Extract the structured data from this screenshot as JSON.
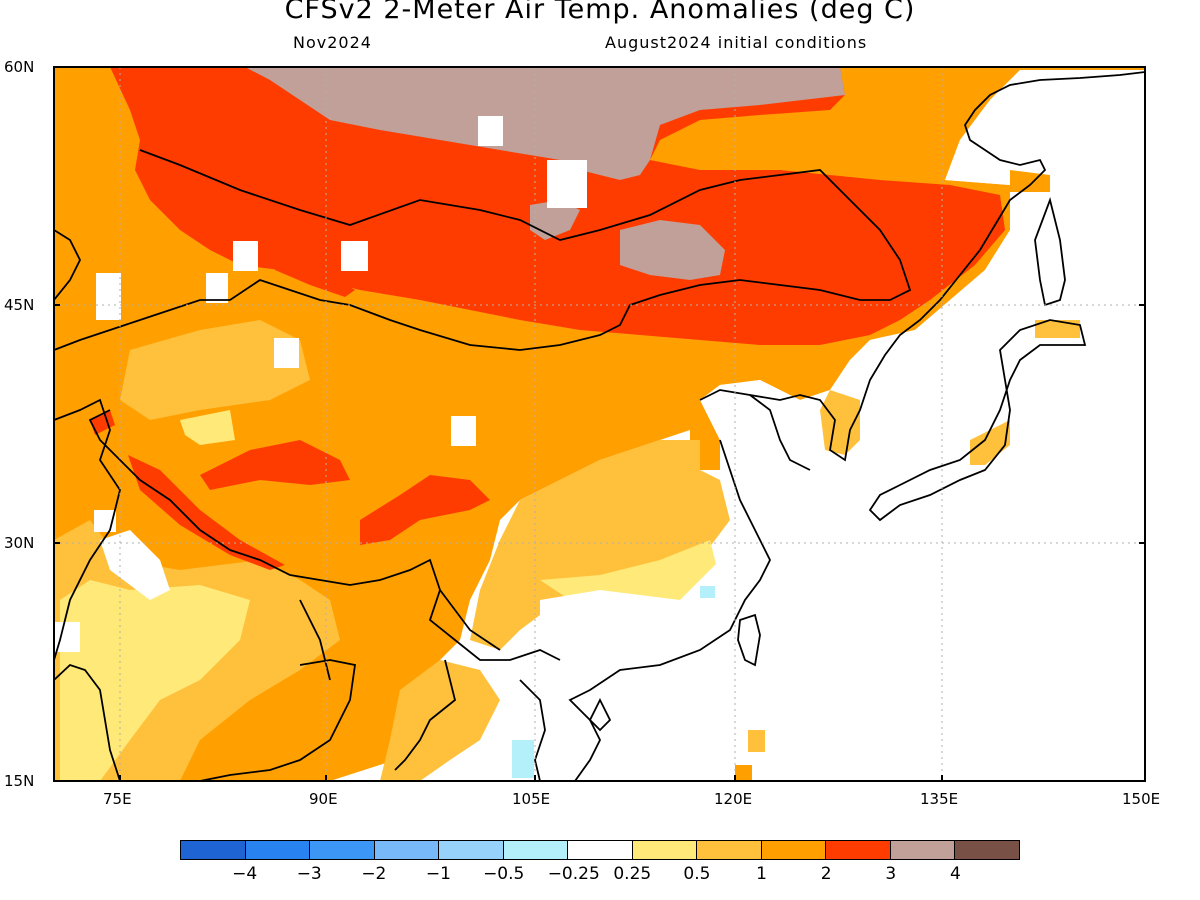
{
  "title": "CFSv2 2-Meter Air Temp. Anomalies (deg C)",
  "subtitle_left": "Nov2024",
  "subtitle_right": "August2024 initial conditions",
  "y_ticks": [
    "60N",
    "45N",
    "30N",
    "15N"
  ],
  "x_ticks": [
    "75E",
    "90E",
    "105E",
    "120E",
    "135E",
    "150E"
  ],
  "colorbar": {
    "colors": [
      "#1e64d2",
      "#2882f0",
      "#3c96f5",
      "#78b9fa",
      "#96d2fa",
      "#b4f0fa",
      "#ffffff",
      "#ffe978",
      "#ffc03c",
      "#ffa000",
      "#ff3c00",
      "#c0a098",
      "#785046"
    ],
    "labels": [
      "-4",
      "-3",
      "-2",
      "-1",
      "-0.5",
      "-0.25",
      "0.25",
      "0.5",
      "1",
      "2",
      "3",
      "4"
    ]
  },
  "map_extent": {
    "lon": [
      70,
      150
    ],
    "lat": [
      15,
      60
    ]
  }
}
